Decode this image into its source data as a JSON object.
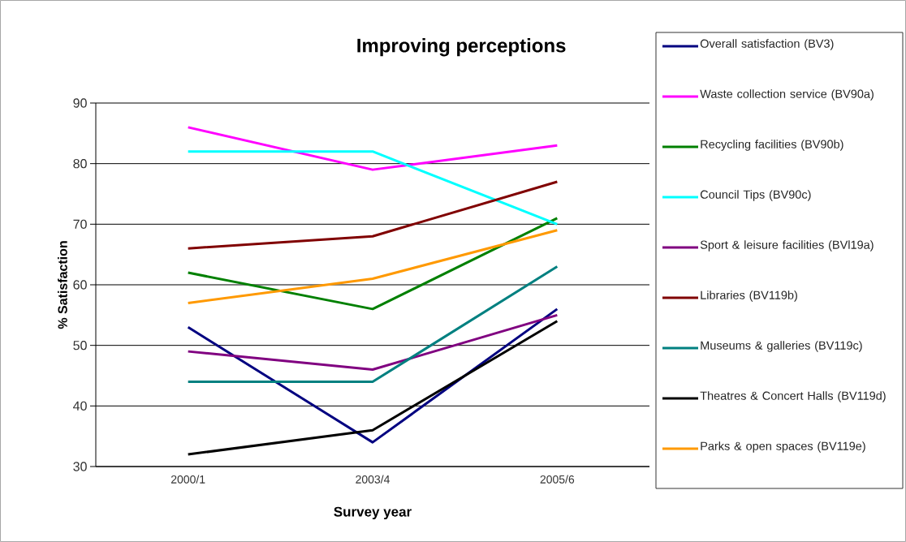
{
  "chart_data": {
    "type": "line",
    "title": "Improving perceptions",
    "xlabel": "Survey year",
    "ylabel": "% Satisfaction",
    "categories": [
      "2000/1",
      "2003/4",
      "2005/6"
    ],
    "ylim": [
      30,
      90
    ],
    "yticks": [
      30,
      40,
      50,
      60,
      70,
      80,
      90
    ],
    "grid": "y",
    "legend": "right",
    "marker": "none",
    "line_style": "solid",
    "series": [
      {
        "name": "Overall satisfaction (BV3)",
        "color": "#000080",
        "values": [
          53,
          34,
          56
        ]
      },
      {
        "name": "Waste collection service (BV90a)",
        "color": "#ff00ff",
        "values": [
          86,
          79,
          83
        ]
      },
      {
        "name": "Recycling facilities (BV90b)",
        "color": "#008000",
        "values": [
          62,
          56,
          71
        ]
      },
      {
        "name": "Council Tips (BV90c)",
        "color": "#00ffff",
        "values": [
          82,
          82,
          70
        ]
      },
      {
        "name": "Sport & leisure facilities (BVl19a)",
        "color": "#800080",
        "values": [
          49,
          46,
          55
        ]
      },
      {
        "name": "Libraries (BV119b)",
        "color": "#800000",
        "values": [
          66,
          68,
          77
        ]
      },
      {
        "name": "Museums & galleries (BV119c)",
        "color": "#008080",
        "values": [
          44,
          44,
          63
        ]
      },
      {
        "name": "Theatres & Concert Halls (BV119d)",
        "color": "#000000",
        "values": [
          32,
          36,
          54
        ]
      },
      {
        "name": "Parks & open spaces (BV119e)",
        "color": "#ff9900",
        "values": [
          57,
          61,
          69
        ]
      }
    ]
  }
}
